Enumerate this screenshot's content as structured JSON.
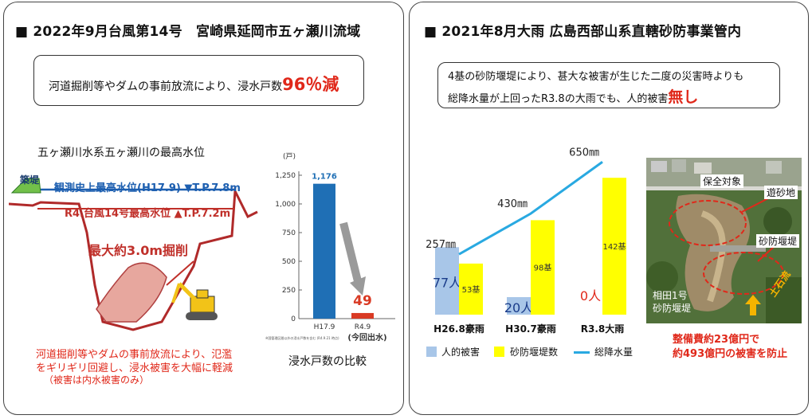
{
  "left": {
    "title": "■ 2022年9月台風第14号　宮崎県延岡市五ヶ瀬川流域",
    "callout_main": "河道掘削等やダムの事前放流により、浸水戸数",
    "callout_highlight": "96％減",
    "section_title": "五ヶ瀬川水系五ヶ瀬川の最高水位",
    "levee_label": "築堤",
    "record_level": "観測史上最高水位(H17.9)",
    "record_tp": "▼T.P.7.8m",
    "r4_level": "R4.台風14号最高水位",
    "r4_tp": "▲T.P.7.2m",
    "excavation_label": "最大約3.0m掘削",
    "note_line1": "河道掘削等やダムの事前放流により、氾濫",
    "note_line2": "をギリギリ回避し、浸水被害を大幅に軽減",
    "note_line3": "（被害は内水被害のみ）",
    "bar_caption": "浸水戸数の比較",
    "bar_chart": {
      "unit": "(戸)",
      "yticks": [
        "1,250",
        "1,000",
        "750",
        "500",
        "250",
        "0"
      ],
      "bars": [
        {
          "label": "H17.9",
          "value": 1176,
          "value_label": "1,176"
        },
        {
          "label": "R4.9",
          "value": 49,
          "value_label": "49"
        }
      ],
      "this_time": "(今回出水)",
      "source_note": "※国管理区間以外の浸水戸数を含む (R4.9.21 時点)",
      "colors": {
        "h17": "#1f6fb5",
        "r4": "#d93a24"
      }
    }
  },
  "right": {
    "title": "■ 2021年8月大雨 広島西部山系直轄砂防事業管内",
    "callout_line1": "4基の砂防堰堤により、甚大な被害が生じた二度の災害時よりも",
    "callout_line2": "総降水量が上回ったR3.8の大雨でも、人的被害",
    "callout_highlight": "無し",
    "photo_labels": {
      "protect": "保全対象",
      "basin": "遊砂地",
      "dam": "砂防堰堤",
      "aida_line1": "相田1号",
      "aida_line2": "砂防堰堤",
      "debris": "土石流"
    },
    "cost_line1": "整備費約23億円で",
    "cost_line2": "約493億円の被害を防止",
    "legend": {
      "casualties": "人的被害",
      "dams": "砂防堰堤数",
      "rain": "総降水量"
    }
  },
  "chart_data": {
    "type": "bar",
    "categories": [
      "H26.8豪雨",
      "H30.7豪雨",
      "R3.8大雨"
    ],
    "series": [
      {
        "name": "人的被害",
        "values": [
          77,
          20,
          0
        ],
        "labels": [
          "77人",
          "20人",
          "0人"
        ],
        "color": "#a8c6e8"
      },
      {
        "name": "砂防堰堤数",
        "values": [
          53,
          98,
          142
        ],
        "labels": [
          "53基",
          "98基",
          "142基"
        ],
        "color": "#ffff00"
      },
      {
        "name": "総降水量",
        "type": "line",
        "values": [
          257,
          430,
          650
        ],
        "labels": [
          "257㎜",
          "430㎜",
          "650㎜"
        ],
        "color": "#29a9e1"
      }
    ]
  }
}
